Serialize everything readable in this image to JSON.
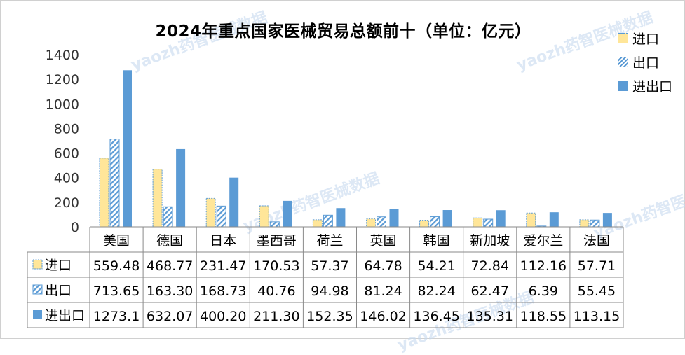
{
  "chart_data": {
    "type": "bar",
    "title": "2024年重点国家医械贸易总额前十（单位：亿元）",
    "categories": [
      "美国",
      "德国",
      "日本",
      "墨西哥",
      "荷兰",
      "英国",
      "韩国",
      "新加坡",
      "爱尔兰",
      "法国"
    ],
    "series": [
      {
        "name": "进口",
        "values": [
          559.48,
          468.77,
          231.47,
          170.53,
          57.37,
          64.78,
          54.21,
          72.84,
          112.16,
          57.71
        ],
        "labels": [
          "559.48",
          "468.77",
          "231.47",
          "170.53",
          "57.37",
          "64.78",
          "54.21",
          "72.84",
          "112.16",
          "57.71"
        ]
      },
      {
        "name": "出口",
        "values": [
          713.65,
          163.3,
          168.73,
          40.76,
          94.98,
          81.24,
          82.24,
          62.47,
          6.39,
          55.45
        ],
        "labels": [
          "713.65",
          "163.30",
          "168.73",
          "40.76",
          "94.98",
          "81.24",
          "82.24",
          "62.47",
          "6.39",
          "55.45"
        ]
      },
      {
        "name": "进出口",
        "values": [
          1273.1,
          632.07,
          400.2,
          211.3,
          152.35,
          146.02,
          136.45,
          135.31,
          118.55,
          113.15
        ],
        "labels": [
          "1273.1",
          "632.07",
          "400.20",
          "211.30",
          "152.35",
          "146.02",
          "136.45",
          "135.31",
          "118.55",
          "113.15"
        ]
      }
    ],
    "yticks": [
      "0",
      "200",
      "400",
      "600",
      "800",
      "1000",
      "1200",
      "1400"
    ],
    "ylim": [
      0,
      1400
    ],
    "legend_position": "right",
    "data_table": true,
    "colors": {
      "import_fill": "#ffe699",
      "import_border": "#5b9bd5",
      "export": "#5b9bd5",
      "total": "#5b9bd5"
    }
  },
  "watermark": "yaozh药智医械数据"
}
